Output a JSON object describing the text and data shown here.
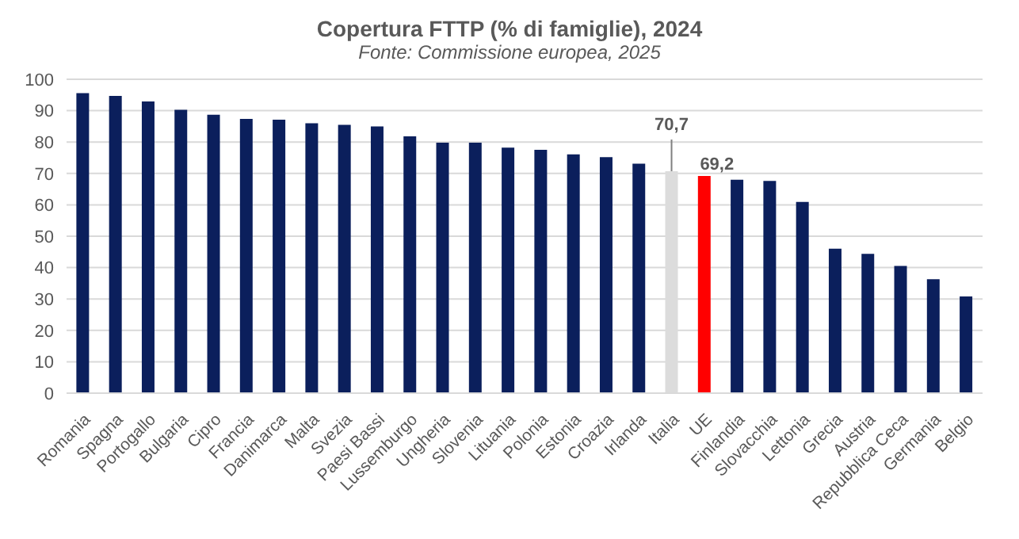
{
  "chart_data": {
    "type": "bar",
    "title": "Copertura FTTP (% di famiglie), 2024",
    "subtitle": "Fonte: Commissione europea, 2025",
    "categories": [
      "Romania",
      "Spagna",
      "Portogallo",
      "Bulgaria",
      "Cipro",
      "Francia",
      "Danimarca",
      "Malta",
      "Svezia",
      "Paesi Bassi",
      "Lussemburgo",
      "Ungheria",
      "Slovenia",
      "Lituania",
      "Polonia",
      "Estonia",
      "Croazia",
      "Irlanda",
      "Italia",
      "UE",
      "Finlandia",
      "Slovacchia",
      "Lettonia",
      "Grecia",
      "Austria",
      "Repubblica Ceca",
      "Germania",
      "Belgio"
    ],
    "values": [
      95.6,
      94.7,
      92.9,
      90.3,
      88.7,
      87.4,
      87.1,
      86.0,
      85.5,
      85.0,
      81.8,
      79.8,
      79.8,
      78.2,
      77.5,
      76.1,
      75.2,
      73.1,
      70.7,
      69.2,
      68.0,
      67.6,
      60.9,
      46.0,
      44.4,
      40.5,
      36.3,
      30.8
    ],
    "colors": [
      "#0b1f5c",
      "#0b1f5c",
      "#0b1f5c",
      "#0b1f5c",
      "#0b1f5c",
      "#0b1f5c",
      "#0b1f5c",
      "#0b1f5c",
      "#0b1f5c",
      "#0b1f5c",
      "#0b1f5c",
      "#0b1f5c",
      "#0b1f5c",
      "#0b1f5c",
      "#0b1f5c",
      "#0b1f5c",
      "#0b1f5c",
      "#0b1f5c",
      "#dcdcdc",
      "#ff0000",
      "#0b1f5c",
      "#0b1f5c",
      "#0b1f5c",
      "#0b1f5c",
      "#0b1f5c",
      "#0b1f5c",
      "#0b1f5c",
      "#0b1f5c"
    ],
    "value_labels": [
      null,
      null,
      null,
      null,
      null,
      null,
      null,
      null,
      null,
      null,
      null,
      null,
      null,
      null,
      null,
      null,
      null,
      null,
      "70,7",
      "69,2",
      null,
      null,
      null,
      null,
      null,
      null,
      null,
      null
    ],
    "ylim": [
      0,
      100
    ],
    "yticks": [
      0,
      10,
      20,
      30,
      40,
      50,
      60,
      70,
      80,
      90,
      100
    ],
    "grid": "y"
  }
}
